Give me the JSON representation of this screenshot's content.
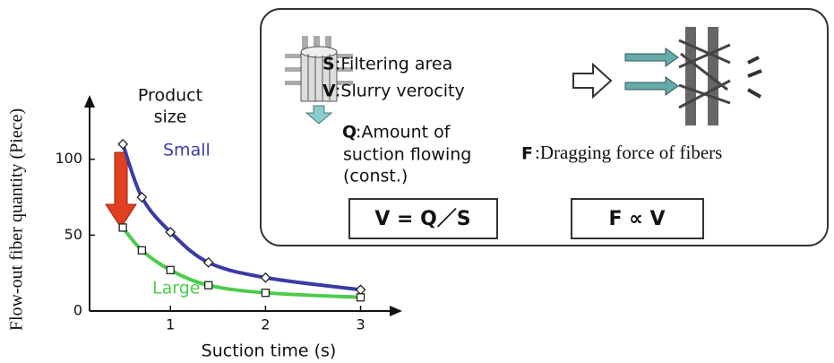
{
  "chart_data": {
    "type": "line",
    "y_label": "Flow-out fiber quantity (Piece)",
    "x_label": "Suction time (s)",
    "annotations": [
      "Product",
      "size"
    ],
    "x": [
      0.5,
      0.7,
      1,
      1.4,
      2,
      3
    ],
    "series": [
      {
        "name": "Small",
        "color": "#3b3ba6",
        "marker": "diamond",
        "values": [
          110,
          75,
          52,
          32,
          22,
          14
        ]
      },
      {
        "name": "Large",
        "color": "#4ccc4c",
        "marker": "square",
        "values": [
          55,
          40,
          27,
          17,
          12,
          9
        ]
      }
    ],
    "xlim": [
      0.15,
      3.4
    ],
    "xticks": [
      1,
      2,
      3
    ],
    "ylim": [
      0,
      140
    ],
    "yticks": [
      0,
      50,
      100
    ]
  },
  "diagram": {
    "s_key": "S",
    "s_text": ":Filtering area",
    "v_key": "V",
    "v_text": ":Slurry verocity",
    "q_key": "Q",
    "q_text": ":Amount of",
    "q_line2": "suction flowing",
    "q_line3": "(const.)",
    "f_key": "F",
    "f_text": ":Dragging force of fibers",
    "formula1": "V = Q／S",
    "formula2": "F ∝ V"
  }
}
